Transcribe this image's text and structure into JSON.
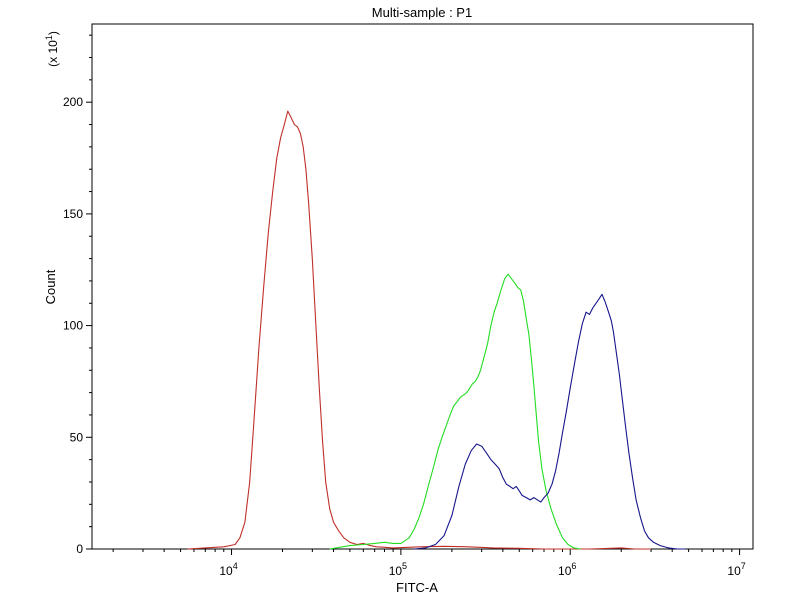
{
  "chart_data": {
    "type": "line",
    "title": "Multi-sample : P1",
    "xlabel": "FITC-A",
    "ylabel": "Count",
    "y_multiplier": {
      "prefix": "(x 10",
      "exp": "1",
      "suffix": ")"
    },
    "x_scale": "log",
    "xlim": [
      1500,
      12000000
    ],
    "ylim": [
      0,
      235
    ],
    "x_ticks": [
      {
        "value": 10000,
        "base": "10",
        "exp": "4"
      },
      {
        "value": 100000,
        "base": "10",
        "exp": "5"
      },
      {
        "value": 1000000,
        "base": "10",
        "exp": "6"
      },
      {
        "value": 10000000,
        "base": "10",
        "exp": "7"
      }
    ],
    "y_ticks": [
      {
        "value": 0,
        "label": "0"
      },
      {
        "value": 50,
        "label": "50"
      },
      {
        "value": 100,
        "label": "100"
      },
      {
        "value": 150,
        "label": "150"
      },
      {
        "value": 200,
        "label": "200"
      }
    ],
    "grid": false,
    "legend": "none",
    "series": [
      {
        "color": "#c0302a",
        "points": [
          [
            5500,
            0
          ],
          [
            7000,
            0.5
          ],
          [
            9000,
            1
          ],
          [
            10500,
            2
          ],
          [
            11200,
            5
          ],
          [
            12000,
            12
          ],
          [
            12800,
            30
          ],
          [
            13500,
            55
          ],
          [
            14500,
            90
          ],
          [
            15500,
            118
          ],
          [
            16500,
            142
          ],
          [
            17500,
            160
          ],
          [
            18500,
            175
          ],
          [
            19500,
            184
          ],
          [
            20500,
            190
          ],
          [
            21500,
            196
          ],
          [
            22500,
            193
          ],
          [
            23500,
            190
          ],
          [
            24500,
            189
          ],
          [
            25500,
            186
          ],
          [
            26500,
            180
          ],
          [
            27500,
            170
          ],
          [
            28500,
            155
          ],
          [
            30000,
            130
          ],
          [
            31500,
            100
          ],
          [
            33000,
            72
          ],
          [
            34500,
            48
          ],
          [
            36000,
            30
          ],
          [
            38000,
            18
          ],
          [
            40000,
            12
          ],
          [
            43000,
            8
          ],
          [
            46000,
            5
          ],
          [
            50000,
            3
          ],
          [
            55000,
            2
          ],
          [
            60000,
            2.5
          ],
          [
            66000,
            1.5
          ],
          [
            72000,
            1
          ],
          [
            90000,
            0.5
          ],
          [
            130000,
            1
          ],
          [
            180000,
            1.2
          ],
          [
            250000,
            1
          ],
          [
            350000,
            0.5
          ],
          [
            500000,
            0.3
          ],
          [
            700000,
            0
          ],
          [
            1300000,
            0
          ],
          [
            2000000,
            0.5
          ],
          [
            2400000,
            0
          ],
          [
            3000000,
            0
          ]
        ]
      },
      {
        "color": "#22dd22",
        "points": [
          [
            38000,
            0
          ],
          [
            50000,
            1.5
          ],
          [
            60000,
            2
          ],
          [
            70000,
            2.5
          ],
          [
            80000,
            3
          ],
          [
            90000,
            2.5
          ],
          [
            100000,
            2.5
          ],
          [
            112000,
            5
          ],
          [
            120000,
            9
          ],
          [
            128000,
            14
          ],
          [
            136000,
            20
          ],
          [
            145000,
            28
          ],
          [
            155000,
            36
          ],
          [
            165000,
            44
          ],
          [
            175000,
            50
          ],
          [
            185000,
            55
          ],
          [
            195000,
            60
          ],
          [
            205000,
            64
          ],
          [
            215000,
            66
          ],
          [
            225000,
            68
          ],
          [
            235000,
            69
          ],
          [
            245000,
            70
          ],
          [
            255000,
            72
          ],
          [
            265000,
            74
          ],
          [
            275000,
            75
          ],
          [
            285000,
            77
          ],
          [
            295000,
            80
          ],
          [
            310000,
            86
          ],
          [
            325000,
            92
          ],
          [
            340000,
            100
          ],
          [
            355000,
            106
          ],
          [
            370000,
            110
          ],
          [
            390000,
            116
          ],
          [
            410000,
            121
          ],
          [
            430000,
            123
          ],
          [
            450000,
            121
          ],
          [
            470000,
            119
          ],
          [
            490000,
            117
          ],
          [
            510000,
            116
          ],
          [
            530000,
            111
          ],
          [
            550000,
            103
          ],
          [
            570000,
            96
          ],
          [
            590000,
            85
          ],
          [
            610000,
            73
          ],
          [
            630000,
            60
          ],
          [
            650000,
            48
          ],
          [
            680000,
            36
          ],
          [
            720000,
            26
          ],
          [
            770000,
            18
          ],
          [
            830000,
            11
          ],
          [
            900000,
            5
          ],
          [
            970000,
            2
          ],
          [
            1050000,
            0.5
          ],
          [
            1150000,
            0
          ]
        ]
      },
      {
        "color": "#16168c",
        "points": [
          [
            120000,
            0
          ],
          [
            140000,
            0.5
          ],
          [
            160000,
            2
          ],
          [
            180000,
            6
          ],
          [
            200000,
            15
          ],
          [
            220000,
            28
          ],
          [
            240000,
            38
          ],
          [
            260000,
            44
          ],
          [
            280000,
            47
          ],
          [
            300000,
            46
          ],
          [
            320000,
            43
          ],
          [
            340000,
            40
          ],
          [
            360000,
            38
          ],
          [
            380000,
            36
          ],
          [
            400000,
            32
          ],
          [
            420000,
            29
          ],
          [
            440000,
            28
          ],
          [
            460000,
            27
          ],
          [
            480000,
            28
          ],
          [
            500000,
            26
          ],
          [
            520000,
            24
          ],
          [
            550000,
            23
          ],
          [
            580000,
            22
          ],
          [
            610000,
            23
          ],
          [
            640000,
            22
          ],
          [
            670000,
            21
          ],
          [
            700000,
            23
          ],
          [
            740000,
            25
          ],
          [
            780000,
            29
          ],
          [
            820000,
            35
          ],
          [
            860000,
            43
          ],
          [
            900000,
            52
          ],
          [
            950000,
            62
          ],
          [
            1000000,
            72
          ],
          [
            1060000,
            83
          ],
          [
            1120000,
            93
          ],
          [
            1180000,
            101
          ],
          [
            1240000,
            106
          ],
          [
            1300000,
            105
          ],
          [
            1360000,
            108
          ],
          [
            1420000,
            110
          ],
          [
            1480000,
            112
          ],
          [
            1540000,
            114
          ],
          [
            1600000,
            111
          ],
          [
            1650000,
            108
          ],
          [
            1700000,
            105
          ],
          [
            1750000,
            102
          ],
          [
            1800000,
            97
          ],
          [
            1870000,
            88
          ],
          [
            1950000,
            78
          ],
          [
            2030000,
            67
          ],
          [
            2120000,
            55
          ],
          [
            2220000,
            43
          ],
          [
            2330000,
            32
          ],
          [
            2450000,
            22
          ],
          [
            2600000,
            14
          ],
          [
            2750000,
            8
          ],
          [
            2900000,
            5
          ],
          [
            3100000,
            3
          ],
          [
            3400000,
            1.5
          ],
          [
            3800000,
            0.5
          ],
          [
            4300000,
            0
          ],
          [
            4800000,
            0
          ]
        ]
      }
    ]
  }
}
